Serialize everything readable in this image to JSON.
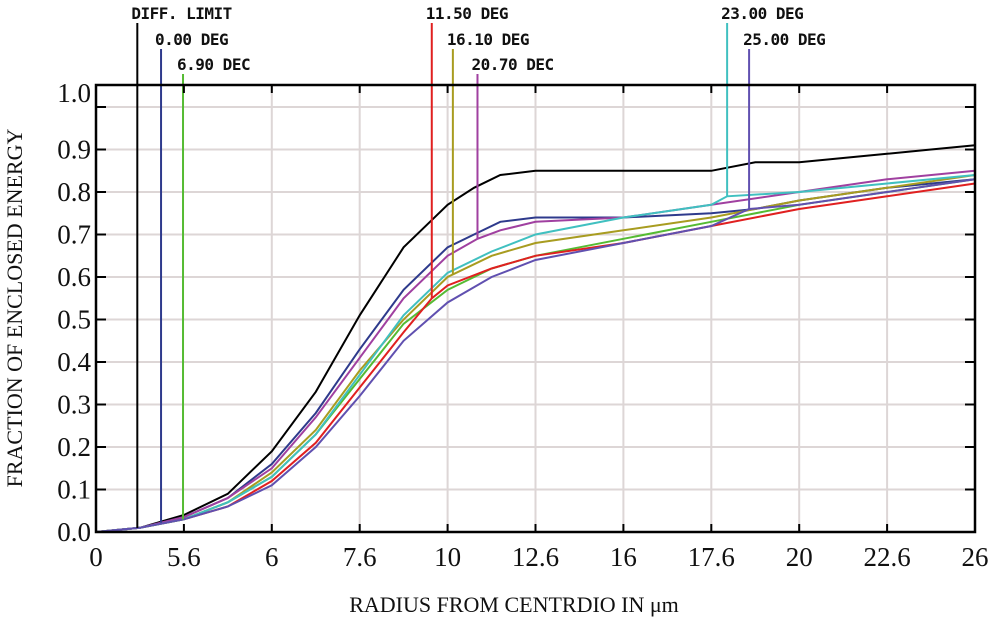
{
  "chart_data": {
    "type": "line",
    "title": "",
    "xlabel": "RADIUS FROM CENTRDIO IN μm",
    "ylabel": "FRACTION OF ENCLOSED ENERGY",
    "x_tick_labels": [
      "0",
      "5.6",
      "6",
      "7.6",
      "10",
      "12.6",
      "16",
      "17.6",
      "20",
      "22.6",
      "26"
    ],
    "y_tick_labels": [
      "0.0",
      "0.1",
      "0.2",
      "0.3",
      "0.4",
      "0.5",
      "0.6",
      "0.7",
      "0.8",
      "0.9",
      "1.0"
    ],
    "ylim": [
      0,
      1.0
    ],
    "grid": true,
    "x_note": "x values are given as positions along the labeled tick sequence (0 = first tick, 10 = last tick)",
    "series": [
      {
        "name": "DIFF. LIMIT",
        "color": "#000000",
        "marker_x": 0.47,
        "x": [
          0,
          0.5,
          1,
          1.5,
          2,
          2.5,
          3,
          3.5,
          3.8,
          4,
          4.3,
          4.6,
          5,
          6,
          7,
          7.5,
          8,
          8.5,
          9,
          9.5,
          10
        ],
        "values": [
          0,
          0.01,
          0.04,
          0.09,
          0.19,
          0.33,
          0.51,
          0.67,
          0.73,
          0.77,
          0.81,
          0.84,
          0.85,
          0.85,
          0.85,
          0.87,
          0.87,
          0.88,
          0.89,
          0.9,
          0.91
        ]
      },
      {
        "name": "0.00 DEG",
        "color": "#2e3a8c",
        "marker_x": 0.74,
        "x": [
          0,
          0.5,
          1,
          1.5,
          2,
          2.5,
          3,
          3.5,
          4,
          4.3,
          4.6,
          5,
          6,
          7,
          7.5,
          8,
          9,
          10
        ],
        "values": [
          0,
          0.01,
          0.035,
          0.08,
          0.16,
          0.28,
          0.43,
          0.57,
          0.67,
          0.7,
          0.73,
          0.74,
          0.74,
          0.75,
          0.76,
          0.78,
          0.81,
          0.83
        ]
      },
      {
        "name": "6.90 DEC",
        "color": "#55bb33",
        "marker_x": 0.99,
        "x": [
          0,
          0.5,
          1,
          1.5,
          2,
          2.5,
          3,
          3.5,
          4,
          4.5,
          5,
          5.5,
          6,
          7,
          8,
          9,
          10
        ],
        "values": [
          0,
          0.01,
          0.03,
          0.07,
          0.13,
          0.23,
          0.36,
          0.49,
          0.57,
          0.62,
          0.65,
          0.67,
          0.69,
          0.73,
          0.77,
          0.8,
          0.83
        ]
      },
      {
        "name": "11.50 DEG",
        "color": "#e02020",
        "marker_x": 3.82,
        "x": [
          0,
          0.5,
          1,
          1.5,
          2,
          2.5,
          3,
          3.5,
          3.82,
          4,
          4.5,
          5,
          6,
          7,
          8,
          9,
          10
        ],
        "values": [
          0,
          0.01,
          0.03,
          0.06,
          0.12,
          0.21,
          0.34,
          0.47,
          0.55,
          0.58,
          0.62,
          0.65,
          0.68,
          0.72,
          0.76,
          0.79,
          0.82
        ]
      },
      {
        "name": "16.10 DEG",
        "color": "#a89c20",
        "marker_x": 4.06,
        "x": [
          0,
          0.5,
          1,
          1.5,
          2,
          2.5,
          3,
          3.5,
          4,
          4.5,
          5,
          6,
          7,
          8,
          9,
          10
        ],
        "values": [
          0,
          0.01,
          0.03,
          0.07,
          0.14,
          0.24,
          0.38,
          0.5,
          0.6,
          0.65,
          0.68,
          0.71,
          0.74,
          0.78,
          0.81,
          0.84
        ]
      },
      {
        "name": "20.70 DEC",
        "color": "#a040a0",
        "marker_x": 4.34,
        "x": [
          0,
          0.5,
          1,
          1.5,
          2,
          2.5,
          3,
          3.5,
          4,
          4.34,
          4.6,
          5,
          6,
          7,
          8,
          9,
          10
        ],
        "values": [
          0,
          0.01,
          0.035,
          0.08,
          0.15,
          0.27,
          0.41,
          0.55,
          0.65,
          0.69,
          0.71,
          0.73,
          0.74,
          0.77,
          0.8,
          0.83,
          0.85
        ]
      },
      {
        "name": "23.00 DEG",
        "color": "#40c0c0",
        "marker_x": 7.18,
        "x": [
          0,
          0.5,
          1,
          1.5,
          2,
          2.5,
          3,
          3.5,
          4,
          4.5,
          5,
          6,
          7,
          7.18,
          8,
          9,
          10
        ],
        "values": [
          0,
          0.01,
          0.03,
          0.07,
          0.13,
          0.23,
          0.37,
          0.51,
          0.61,
          0.66,
          0.7,
          0.74,
          0.77,
          0.79,
          0.8,
          0.82,
          0.84
        ]
      },
      {
        "name": "25.00 DEG",
        "color": "#6050b0",
        "marker_x": 7.43,
        "x": [
          0,
          0.5,
          1,
          1.5,
          2,
          2.5,
          3,
          3.5,
          4,
          4.5,
          5,
          6,
          7,
          7.43,
          8,
          9,
          10
        ],
        "values": [
          0,
          0.01,
          0.03,
          0.06,
          0.11,
          0.2,
          0.32,
          0.45,
          0.54,
          0.6,
          0.64,
          0.68,
          0.72,
          0.76,
          0.77,
          0.8,
          0.83
        ]
      }
    ]
  }
}
